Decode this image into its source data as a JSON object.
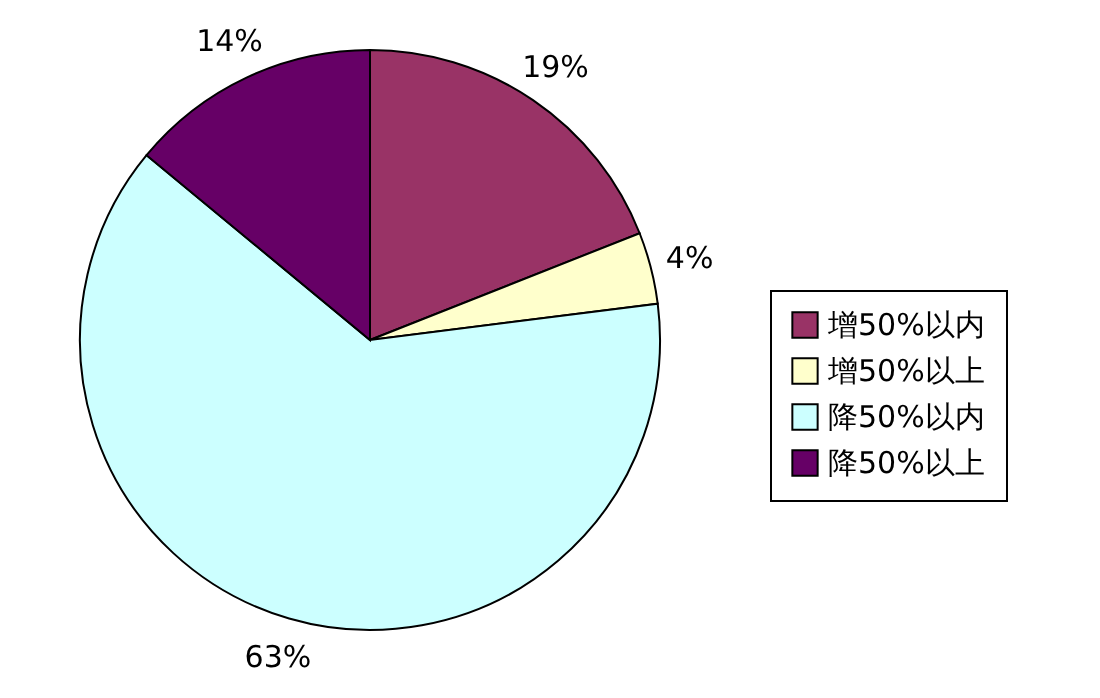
{
  "chart_data": {
    "type": "pie",
    "categories": [
      "增50%以内",
      "增50%以上",
      "降50%以内",
      "降50%以上"
    ],
    "values": [
      19,
      4,
      63,
      14
    ],
    "colors": [
      "#993366",
      "#ffffcc",
      "#ccffff",
      "#660066"
    ],
    "value_labels": [
      "19%",
      "4%",
      "63%",
      "14%"
    ],
    "legend": "right"
  }
}
